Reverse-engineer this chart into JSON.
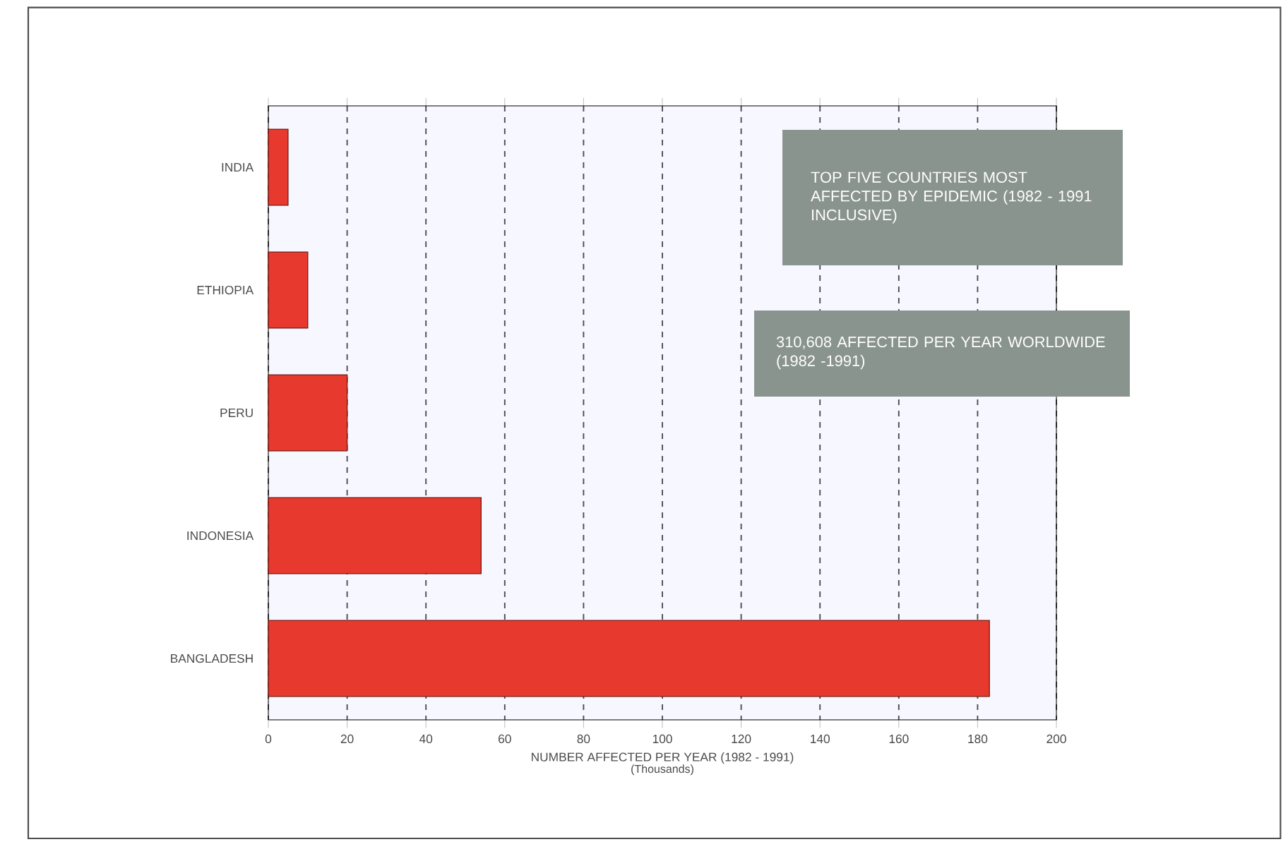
{
  "chart_data": {
    "type": "bar",
    "orientation": "horizontal",
    "title": "TOP FIVE COUNTRIES MOST AFFECTED BY EPIDEMIC (1982 - 1991 INCLUSIVE)",
    "xlabel": "NUMBER AFFECTED PER YEAR (1982 - 1991)",
    "annotations": [
      "(Thousands)",
      "310,608  AFFECTED PER YEAR WORLDWIDE (1982 -1991)"
    ],
    "categories": [
      "INDIA",
      "ETHIOPIA",
      "PERU",
      "INDONESIA",
      "BANGLADESH"
    ],
    "values": [
      5,
      10,
      20,
      54,
      183
    ],
    "color": "#e8392e",
    "xlim": [
      0,
      200
    ],
    "xticks": [
      0,
      20,
      40,
      60,
      80,
      100,
      120,
      140,
      160,
      180,
      200
    ],
    "grid": "x",
    "legend": false
  }
}
